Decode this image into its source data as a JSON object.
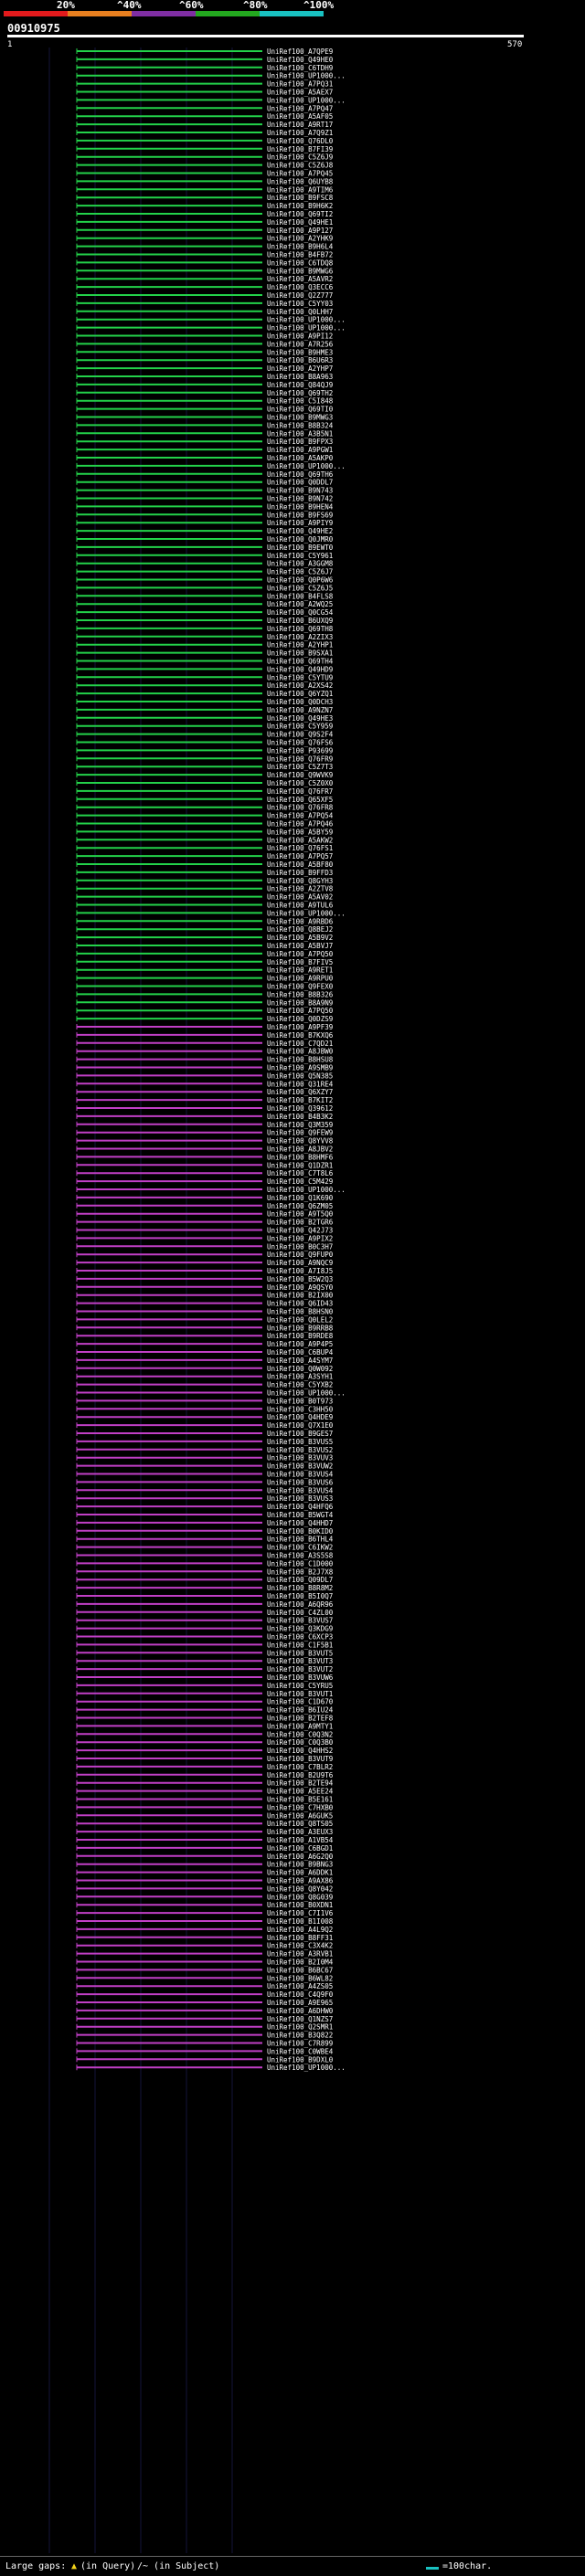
{
  "scale": {
    "labels": [
      "20%",
      "^40%",
      "^60%",
      "^80%",
      "^100%"
    ],
    "colors": [
      "#e31a1c",
      "#e87f1f",
      "#7f2ea3",
      "#23a81f",
      "#19c1c1"
    ]
  },
  "query": {
    "id": "00910975",
    "start": "1",
    "end": "570"
  },
  "colors": {
    "green": "#23d24a",
    "magenta": "#c13fc6",
    "background": "#000000",
    "grid": "#14143a"
  },
  "footer": {
    "gaps_label": "Large gaps:",
    "query_gap": "(in Query)",
    "subject_gap": "/~ (in Subject)",
    "scale_label": "=100char."
  },
  "hits": [
    {
      "label": "UniRef100_A7QPE9",
      "color": "green"
    },
    {
      "label": "UniRef100_Q49HE0",
      "color": "green"
    },
    {
      "label": "UniRef100_C6TDH9",
      "color": "green"
    },
    {
      "label": "UniRef100_UP1000...",
      "color": "green"
    },
    {
      "label": "UniRef100_A7PQ31",
      "color": "green"
    },
    {
      "label": "UniRef100_A5AEX7",
      "color": "green"
    },
    {
      "label": "UniRef100_UP1000...",
      "color": "green"
    },
    {
      "label": "UniRef100_A7PQ47",
      "color": "green"
    },
    {
      "label": "UniRef100_A5AF05",
      "color": "green"
    },
    {
      "label": "UniRef100_A9RT17",
      "color": "green"
    },
    {
      "label": "UniRef100_A7Q9Z1",
      "color": "green"
    },
    {
      "label": "UniRef100_Q76DL0",
      "color": "green"
    },
    {
      "label": "UniRef100_B7FI39",
      "color": "green"
    },
    {
      "label": "UniRef100_C5Z6J9",
      "color": "green"
    },
    {
      "label": "UniRef100_C5Z6J8",
      "color": "green"
    },
    {
      "label": "UniRef100_A7PQ45",
      "color": "green"
    },
    {
      "label": "UniRef100_Q6UYB8",
      "color": "green"
    },
    {
      "label": "UniRef100_A9TIM6",
      "color": "green"
    },
    {
      "label": "UniRef100_B9FSC8",
      "color": "green"
    },
    {
      "label": "UniRef100_B9H6K2",
      "color": "green"
    },
    {
      "label": "UniRef100_Q69TI2",
      "color": "green"
    },
    {
      "label": "UniRef100_Q49HE1",
      "color": "green"
    },
    {
      "label": "UniRef100_A9P127",
      "color": "green"
    },
    {
      "label": "UniRef100_A2YHK9",
      "color": "green"
    },
    {
      "label": "UniRef100_B9H6L4",
      "color": "green"
    },
    {
      "label": "UniRef100_B4FB72",
      "color": "green"
    },
    {
      "label": "UniRef100_C6TDQ8",
      "color": "green"
    },
    {
      "label": "UniRef100_B9MWG6",
      "color": "green"
    },
    {
      "label": "UniRef100_A5AVR2",
      "color": "green"
    },
    {
      "label": "UniRef100_Q3ECC6",
      "color": "green"
    },
    {
      "label": "UniRef100_Q2Z777",
      "color": "green"
    },
    {
      "label": "UniRef100_C5YY03",
      "color": "green"
    },
    {
      "label": "UniRef100_Q0LHH7",
      "color": "green"
    },
    {
      "label": "UniRef100_UP1000...",
      "color": "green"
    },
    {
      "label": "UniRef100_UP1000...",
      "color": "green"
    },
    {
      "label": "UniRef100_A9PI12",
      "color": "green"
    },
    {
      "label": "UniRef100_A7R256",
      "color": "green"
    },
    {
      "label": "UniRef100_B9HME3",
      "color": "green"
    },
    {
      "label": "UniRef100_B6U6R3",
      "color": "green"
    },
    {
      "label": "UniRef100_A2YHP7",
      "color": "green"
    },
    {
      "label": "UniRef100_B8A963",
      "color": "green"
    },
    {
      "label": "UniRef100_Q84QJ9",
      "color": "green"
    },
    {
      "label": "UniRef100_Q69TH2",
      "color": "green"
    },
    {
      "label": "UniRef100_C5I848",
      "color": "green"
    },
    {
      "label": "UniRef100_Q69TI0",
      "color": "green"
    },
    {
      "label": "UniRef100_B9MWG3",
      "color": "green"
    },
    {
      "label": "UniRef100_B8B324",
      "color": "green"
    },
    {
      "label": "UniRef100_A3B5N1",
      "color": "green"
    },
    {
      "label": "UniRef100_B9FPX3",
      "color": "green"
    },
    {
      "label": "UniRef100_A9PGW1",
      "color": "green"
    },
    {
      "label": "UniRef100_A5AKP0",
      "color": "green"
    },
    {
      "label": "UniRef100_UP1000...",
      "color": "green"
    },
    {
      "label": "UniRef100_Q69TH6",
      "color": "green"
    },
    {
      "label": "UniRef100_Q0DDL7",
      "color": "green"
    },
    {
      "label": "UniRef100_B9N743",
      "color": "green"
    },
    {
      "label": "UniRef100_B9N742",
      "color": "green"
    },
    {
      "label": "UniRef100_B9HEN4",
      "color": "green"
    },
    {
      "label": "UniRef100_B9FS69",
      "color": "green"
    },
    {
      "label": "UniRef100_A9PIY9",
      "color": "green"
    },
    {
      "label": "UniRef100_Q49HE2",
      "color": "green"
    },
    {
      "label": "UniRef100_Q0JMR0",
      "color": "green"
    },
    {
      "label": "UniRef100_B9EWT0",
      "color": "green"
    },
    {
      "label": "UniRef100_C5Y961",
      "color": "green"
    },
    {
      "label": "UniRef100_A3GGM8",
      "color": "green"
    },
    {
      "label": "UniRef100_C5Z6J7",
      "color": "green"
    },
    {
      "label": "UniRef100_Q0P6W6",
      "color": "green"
    },
    {
      "label": "UniRef100_C5Z6J5",
      "color": "green"
    },
    {
      "label": "UniRef100_B4FLS8",
      "color": "green"
    },
    {
      "label": "UniRef100_A2WQ25",
      "color": "green"
    },
    {
      "label": "UniRef100_Q0CG54",
      "color": "green"
    },
    {
      "label": "UniRef100_B6UXQ9",
      "color": "green"
    },
    {
      "label": "UniRef100_Q69TH8",
      "color": "green"
    },
    {
      "label": "UniRef100_A2ZIX3",
      "color": "green"
    },
    {
      "label": "UniRef100_A2YHP1",
      "color": "green"
    },
    {
      "label": "UniRef100_B9SXA1",
      "color": "green"
    },
    {
      "label": "UniRef100_Q69TH4",
      "color": "green"
    },
    {
      "label": "UniRef100_Q49HD9",
      "color": "green"
    },
    {
      "label": "UniRef100_C5YTU9",
      "color": "green"
    },
    {
      "label": "UniRef100_A2XS42",
      "color": "green"
    },
    {
      "label": "UniRef100_Q6YZQ1",
      "color": "green"
    },
    {
      "label": "UniRef100_Q0DCH3",
      "color": "green"
    },
    {
      "label": "UniRef100_A9NZN7",
      "color": "green"
    },
    {
      "label": "UniRef100_Q49HE3",
      "color": "green"
    },
    {
      "label": "UniRef100_C5Y959",
      "color": "green"
    },
    {
      "label": "UniRef100_Q9S2F4",
      "color": "green"
    },
    {
      "label": "UniRef100_Q76FS6",
      "color": "green"
    },
    {
      "label": "UniRef100_P93699",
      "color": "green"
    },
    {
      "label": "UniRef100_Q76FR9",
      "color": "green"
    },
    {
      "label": "UniRef100_C5Z7T3",
      "color": "green"
    },
    {
      "label": "UniRef100_Q9WVK9",
      "color": "green"
    },
    {
      "label": "UniRef100_C5Z0X0",
      "color": "green"
    },
    {
      "label": "UniRef100_Q76FR7",
      "color": "green"
    },
    {
      "label": "UniRef100_Q65XF5",
      "color": "green"
    },
    {
      "label": "UniRef100_Q76FR8",
      "color": "green"
    },
    {
      "label": "UniRef100_A7PQ54",
      "color": "green"
    },
    {
      "label": "UniRef100_A7PQ46",
      "color": "green"
    },
    {
      "label": "UniRef100_A5BY59",
      "color": "green"
    },
    {
      "label": "UniRef100_A5AKW2",
      "color": "green"
    },
    {
      "label": "UniRef100_Q76FS1",
      "color": "green"
    },
    {
      "label": "UniRef100_A7PQ57",
      "color": "green"
    },
    {
      "label": "UniRef100_A5BF80",
      "color": "green"
    },
    {
      "label": "UniRef100_B9FFD3",
      "color": "green"
    },
    {
      "label": "UniRef100_Q8GYH3",
      "color": "green"
    },
    {
      "label": "UniRef100_A2ZTV8",
      "color": "green"
    },
    {
      "label": "UniRef100_A5AV02",
      "color": "green"
    },
    {
      "label": "UniRef100_A9TUL6",
      "color": "green"
    },
    {
      "label": "UniRef100_UP1000...",
      "color": "green"
    },
    {
      "label": "UniRef100_A9RBD6",
      "color": "green"
    },
    {
      "label": "UniRef100_Q8BEJ2",
      "color": "green"
    },
    {
      "label": "UniRef100_A5B9V2",
      "color": "green"
    },
    {
      "label": "UniRef100_A5BVJ7",
      "color": "green"
    },
    {
      "label": "UniRef100_A7PQ50",
      "color": "green"
    },
    {
      "label": "UniRef100_B7FIV5",
      "color": "green"
    },
    {
      "label": "UniRef100_A9RET1",
      "color": "green"
    },
    {
      "label": "UniRef100_A9RPU0",
      "color": "green"
    },
    {
      "label": "UniRef100_Q9FEX0",
      "color": "green"
    },
    {
      "label": "UniRef100_B8B326",
      "color": "green"
    },
    {
      "label": "UniRef100_B8A9N9",
      "color": "green"
    },
    {
      "label": "UniRef100_A7PQ50",
      "color": "green"
    },
    {
      "label": "UniRef100_Q0DZS9",
      "color": "green"
    },
    {
      "label": "UniRef100_A9PF39",
      "color": "magenta"
    },
    {
      "label": "UniRef100_B7KXQ6",
      "color": "magenta"
    },
    {
      "label": "UniRef100_C7QD21",
      "color": "magenta"
    },
    {
      "label": "UniRef100_A8JBW0",
      "color": "magenta"
    },
    {
      "label": "UniRef100_B8HSU8",
      "color": "magenta"
    },
    {
      "label": "UniRef100_A9SMB9",
      "color": "magenta"
    },
    {
      "label": "UniRef100_Q5N385",
      "color": "magenta"
    },
    {
      "label": "UniRef100_Q31RE4",
      "color": "magenta"
    },
    {
      "label": "UniRef100_Q6XZY7",
      "color": "magenta"
    },
    {
      "label": "UniRef100_B7KIT2",
      "color": "magenta"
    },
    {
      "label": "UniRef100_Q39612",
      "color": "magenta"
    },
    {
      "label": "UniRef100_B4B3K2",
      "color": "magenta"
    },
    {
      "label": "UniRef100_Q3M359",
      "color": "magenta"
    },
    {
      "label": "UniRef100_Q9FEW9",
      "color": "magenta"
    },
    {
      "label": "UniRef100_Q8YVV8",
      "color": "magenta"
    },
    {
      "label": "UniRef100_A8JBV2",
      "color": "magenta"
    },
    {
      "label": "UniRef100_B8HMF6",
      "color": "magenta"
    },
    {
      "label": "UniRef100_Q1DZR1",
      "color": "magenta"
    },
    {
      "label": "UniRef100_C7T8L6",
      "color": "magenta"
    },
    {
      "label": "UniRef100_C5M429",
      "color": "magenta"
    },
    {
      "label": "UniRef100_UP1000...",
      "color": "magenta"
    },
    {
      "label": "UniRef100_Q1K690",
      "color": "magenta"
    },
    {
      "label": "UniRef100_Q6ZM05",
      "color": "magenta"
    },
    {
      "label": "UniRef100_A9T5Q0",
      "color": "magenta"
    },
    {
      "label": "UniRef100_B2TGR6",
      "color": "magenta"
    },
    {
      "label": "UniRef100_Q42J73",
      "color": "magenta"
    },
    {
      "label": "UniRef100_A9PIX2",
      "color": "magenta"
    },
    {
      "label": "UniRef100_B0C3H7",
      "color": "magenta"
    },
    {
      "label": "UniRef100_Q9FUP0",
      "color": "magenta"
    },
    {
      "label": "UniRef100_A9NQC9",
      "color": "magenta"
    },
    {
      "label": "UniRef100_A7I8J5",
      "color": "magenta"
    },
    {
      "label": "UniRef100_B5W2Q3",
      "color": "magenta"
    },
    {
      "label": "UniRef100_A9QSY0",
      "color": "magenta"
    },
    {
      "label": "UniRef100_B2IX00",
      "color": "magenta"
    },
    {
      "label": "UniRef100_Q6ID43",
      "color": "magenta"
    },
    {
      "label": "UniRef100_B8HSN0",
      "color": "magenta"
    },
    {
      "label": "UniRef100_Q0LEL2",
      "color": "magenta"
    },
    {
      "label": "UniRef100_B9RRB8",
      "color": "magenta"
    },
    {
      "label": "UniRef100_B9RDE8",
      "color": "magenta"
    },
    {
      "label": "UniRef100_A9P4P5",
      "color": "magenta"
    },
    {
      "label": "UniRef100_C6BUP4",
      "color": "magenta"
    },
    {
      "label": "UniRef100_A4SYM7",
      "color": "magenta"
    },
    {
      "label": "UniRef100_Q0W092",
      "color": "magenta"
    },
    {
      "label": "UniRef100_A3SYH1",
      "color": "magenta"
    },
    {
      "label": "UniRef100_C5YXB2",
      "color": "magenta"
    },
    {
      "label": "UniRef100_UP1000...",
      "color": "magenta"
    },
    {
      "label": "UniRef100_B0T973",
      "color": "magenta"
    },
    {
      "label": "UniRef100_C3HH50",
      "color": "magenta"
    },
    {
      "label": "UniRef100_Q4HDE9",
      "color": "magenta"
    },
    {
      "label": "UniRef100_Q7X1E0",
      "color": "magenta"
    },
    {
      "label": "UniRef100_B9GES7",
      "color": "magenta"
    },
    {
      "label": "UniRef100_B3VUS5",
      "color": "magenta"
    },
    {
      "label": "UniRef100_B3VUS2",
      "color": "magenta"
    },
    {
      "label": "UniRef100_B3VUV3",
      "color": "magenta"
    },
    {
      "label": "UniRef100_B3VUW2",
      "color": "magenta"
    },
    {
      "label": "UniRef100_B3VUS4",
      "color": "magenta"
    },
    {
      "label": "UniRef100_B3VUS6",
      "color": "magenta"
    },
    {
      "label": "UniRef100_B3VUS4",
      "color": "magenta"
    },
    {
      "label": "UniRef100_B3VUS3",
      "color": "magenta"
    },
    {
      "label": "UniRef100_Q4HFQ6",
      "color": "magenta"
    },
    {
      "label": "UniRef100_B5WGT4",
      "color": "magenta"
    },
    {
      "label": "UniRef100_Q4HHD7",
      "color": "magenta"
    },
    {
      "label": "UniRef100_B0KID0",
      "color": "magenta"
    },
    {
      "label": "UniRef100_B6THL4",
      "color": "magenta"
    },
    {
      "label": "UniRef100_C6IKW2",
      "color": "magenta"
    },
    {
      "label": "UniRef100_A3S5S8",
      "color": "magenta"
    },
    {
      "label": "UniRef100_C1D000",
      "color": "magenta"
    },
    {
      "label": "UniRef100_B2J7X8",
      "color": "magenta"
    },
    {
      "label": "UniRef100_Q09DL7",
      "color": "magenta"
    },
    {
      "label": "UniRef100_B8R8M2",
      "color": "magenta"
    },
    {
      "label": "UniRef100_B5I0Q7",
      "color": "magenta"
    },
    {
      "label": "UniRef100_A6QR96",
      "color": "magenta"
    },
    {
      "label": "UniRef100_C4ZL00",
      "color": "magenta"
    },
    {
      "label": "UniRef100_B3VUS7",
      "color": "magenta"
    },
    {
      "label": "UniRef100_Q3KDG9",
      "color": "magenta"
    },
    {
      "label": "UniRef100_C6XCP3",
      "color": "magenta"
    },
    {
      "label": "UniRef100_C1F5B1",
      "color": "magenta"
    },
    {
      "label": "UniRef100_B3VUT5",
      "color": "magenta"
    },
    {
      "label": "UniRef100_B3VUT3",
      "color": "magenta"
    },
    {
      "label": "UniRef100_B3VUT2",
      "color": "magenta"
    },
    {
      "label": "UniRef100_B3VUW6",
      "color": "magenta"
    },
    {
      "label": "UniRef100_C5YRU5",
      "color": "magenta"
    },
    {
      "label": "UniRef100_B3VUT1",
      "color": "magenta"
    },
    {
      "label": "UniRef100_C1D670",
      "color": "magenta"
    },
    {
      "label": "UniRef100_B6IU24",
      "color": "magenta"
    },
    {
      "label": "UniRef100_B2TEF8",
      "color": "magenta"
    },
    {
      "label": "UniRef100_A9MTY1",
      "color": "magenta"
    },
    {
      "label": "UniRef100_C0Q3N2",
      "color": "magenta"
    },
    {
      "label": "UniRef100_C0Q3B0",
      "color": "magenta"
    },
    {
      "label": "UniRef100_Q4HHS2",
      "color": "magenta"
    },
    {
      "label": "UniRef100_B3VUT9",
      "color": "magenta"
    },
    {
      "label": "UniRef100_C7BLR2",
      "color": "magenta"
    },
    {
      "label": "UniRef100_B2U9T6",
      "color": "magenta"
    },
    {
      "label": "UniRef100_B2TE94",
      "color": "magenta"
    },
    {
      "label": "UniRef100_A5EE24",
      "color": "magenta"
    },
    {
      "label": "UniRef100_B5E161",
      "color": "magenta"
    },
    {
      "label": "UniRef100_C7HXB0",
      "color": "magenta"
    },
    {
      "label": "UniRef100_A6GUK5",
      "color": "magenta"
    },
    {
      "label": "UniRef100_Q8TS05",
      "color": "magenta"
    },
    {
      "label": "UniRef100_A3EUX3",
      "color": "magenta"
    },
    {
      "label": "UniRef100_A1VB54",
      "color": "magenta"
    },
    {
      "label": "UniRef100_C6BGD1",
      "color": "magenta"
    },
    {
      "label": "UniRef100_A6G2Q0",
      "color": "magenta"
    },
    {
      "label": "UniRef100_B9BNG3",
      "color": "magenta"
    },
    {
      "label": "UniRef100_A6DDK1",
      "color": "magenta"
    },
    {
      "label": "UniRef100_A9AX86",
      "color": "magenta"
    },
    {
      "label": "UniRef100_Q8Y042",
      "color": "magenta"
    },
    {
      "label": "UniRef100_Q8G039",
      "color": "magenta"
    },
    {
      "label": "UniRef100_B0XDN1",
      "color": "magenta"
    },
    {
      "label": "UniRef100_C7I1V6",
      "color": "magenta"
    },
    {
      "label": "UniRef100_B1I008",
      "color": "magenta"
    },
    {
      "label": "UniRef100_A4L9Q2",
      "color": "magenta"
    },
    {
      "label": "UniRef100_B8FF31",
      "color": "magenta"
    },
    {
      "label": "UniRef100_C3X4K2",
      "color": "magenta"
    },
    {
      "label": "UniRef100_A3RVB1",
      "color": "magenta"
    },
    {
      "label": "UniRef100_B2I0M4",
      "color": "magenta"
    },
    {
      "label": "UniRef100_B6BC67",
      "color": "magenta"
    },
    {
      "label": "UniRef100_B6WL82",
      "color": "magenta"
    },
    {
      "label": "UniRef100_A4ZS05",
      "color": "magenta"
    },
    {
      "label": "UniRef100_C4Q9F0",
      "color": "magenta"
    },
    {
      "label": "UniRef100_A9E965",
      "color": "magenta"
    },
    {
      "label": "UniRef100_A6DHW0",
      "color": "magenta"
    },
    {
      "label": "UniRef100_Q1NZS7",
      "color": "magenta"
    },
    {
      "label": "UniRef100_Q2SMR1",
      "color": "magenta"
    },
    {
      "label": "UniRef100_B3Q822",
      "color": "magenta"
    },
    {
      "label": "UniRef100_C7R899",
      "color": "magenta"
    },
    {
      "label": "UniRef100_C0WBE4",
      "color": "magenta"
    },
    {
      "label": "UniRef100_B9DXL0",
      "color": "magenta"
    },
    {
      "label": "UniRef100_UP1000...",
      "color": "magenta"
    }
  ]
}
